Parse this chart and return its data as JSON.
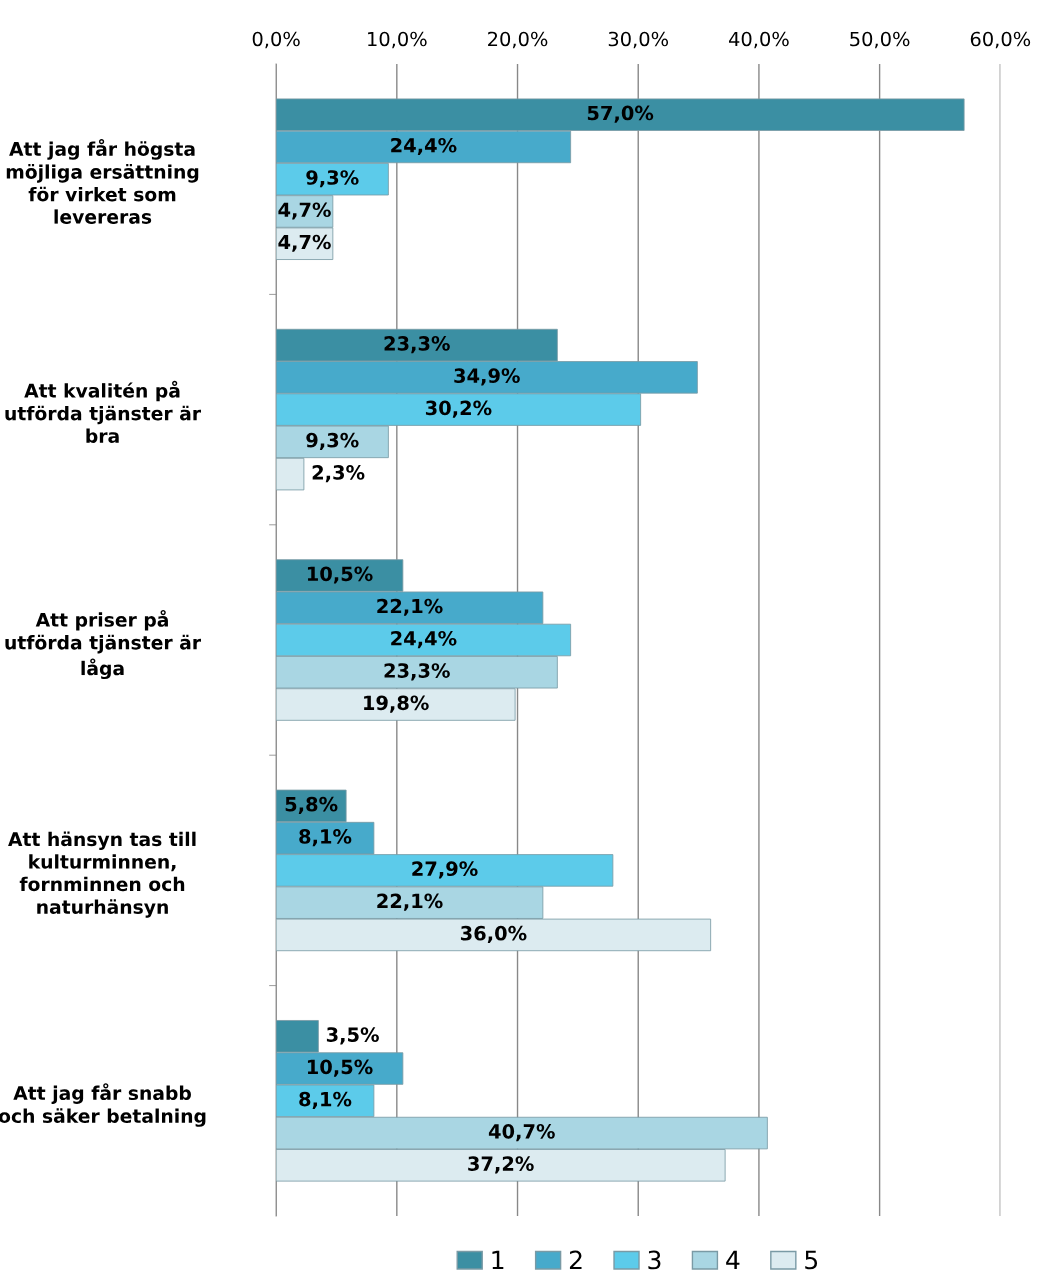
{
  "chart_data": {
    "type": "bar",
    "orientation": "horizontal",
    "categories": [
      "Att jag får högsta möjliga ersättning för virket som levereras",
      "Att kvalitén på utförda tjänster är bra",
      "Att priser på utförda tjänster är låga",
      "Att hänsyn tas till kulturminnen, fornminnen och naturhänsyn",
      "Att jag får snabb och säker betalning"
    ],
    "series": [
      {
        "name": "1",
        "color": "#3b8fa3",
        "values": [
          57.0,
          23.3,
          10.5,
          5.8,
          3.5
        ],
        "value_labels": [
          "57,0%",
          "23,3%",
          "10,5%",
          "5,8%",
          "3,5%"
        ]
      },
      {
        "name": "2",
        "color": "#47aacb",
        "values": [
          24.4,
          34.9,
          22.1,
          8.1,
          10.5
        ],
        "value_labels": [
          "24,4%",
          "34,9%",
          "22,1%",
          "8,1%",
          "10,5%"
        ]
      },
      {
        "name": "3",
        "color": "#5ccbea",
        "values": [
          9.3,
          30.2,
          24.4,
          27.9,
          8.1
        ],
        "value_labels": [
          "9,3%",
          "30,2%",
          "24,4%",
          "27,9%",
          "8,1%"
        ]
      },
      {
        "name": "4",
        "color": "#a9d6e3",
        "values": [
          4.7,
          9.3,
          23.3,
          22.1,
          40.7
        ],
        "value_labels": [
          "4,7%",
          "9,3%",
          "23,3%",
          "22,1%",
          "40,7%"
        ]
      },
      {
        "name": "5",
        "color": "#dcebf0",
        "values": [
          4.7,
          2.3,
          19.8,
          36.0,
          37.2
        ],
        "value_labels": [
          "4,7%",
          "2,3%",
          "19,8%",
          "36,0%",
          "37,2%"
        ]
      }
    ],
    "xlim": [
      0,
      60
    ],
    "xticks": [
      {
        "value": 0,
        "label": "0,0%"
      },
      {
        "value": 10,
        "label": "10,0%"
      },
      {
        "value": 20,
        "label": "20,0%"
      },
      {
        "value": 30,
        "label": "30,0%"
      },
      {
        "value": 40,
        "label": "40,0%"
      },
      {
        "value": 50,
        "label": "50,0%"
      },
      {
        "value": 60,
        "label": "60,0%"
      }
    ],
    "grid": "x",
    "legend": "bottom"
  }
}
